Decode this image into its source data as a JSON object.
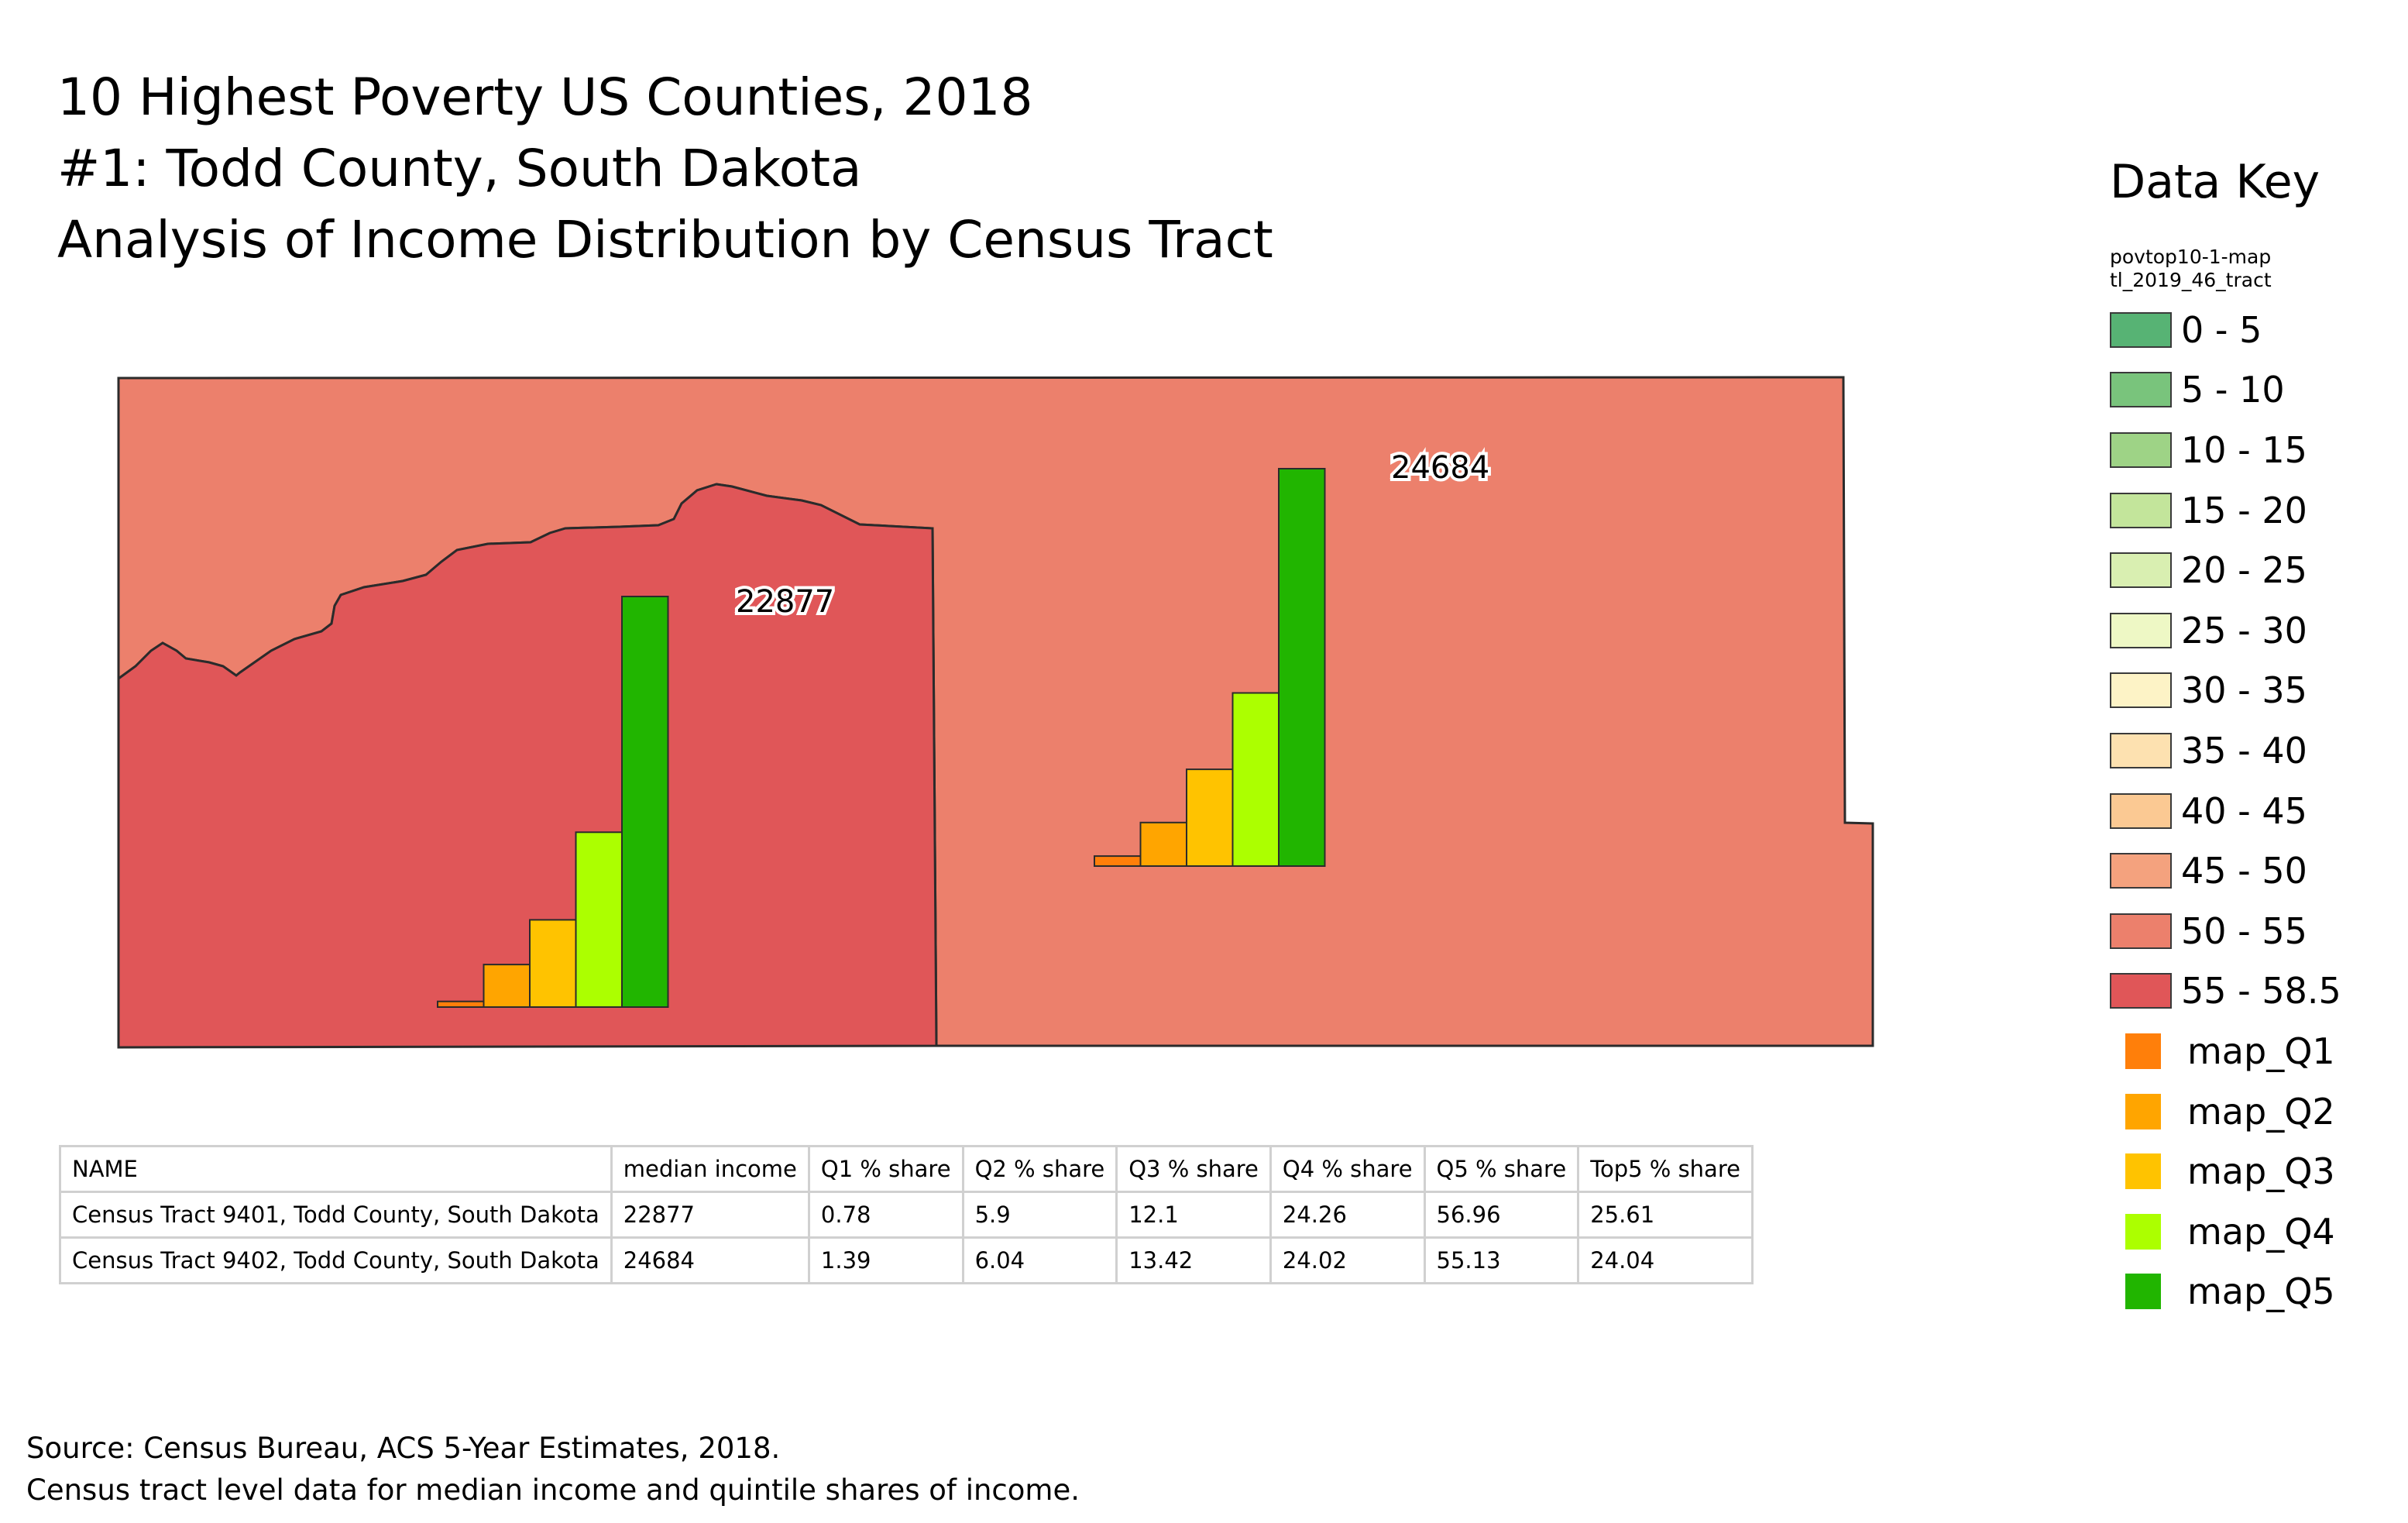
{
  "title": {
    "line1": "10 Highest Poverty US Counties, 2018",
    "line2": "#1: Todd County, South Dakota",
    "line3": "Analysis of Income Distribution by Census Tract"
  },
  "map": {
    "tracts": [
      {
        "label": "22877",
        "fill": "#e05658",
        "quintile_shares": [
          0.78,
          5.9,
          12.1,
          24.26,
          56.96
        ]
      },
      {
        "label": "24684",
        "fill": "#ec806c",
        "quintile_shares": [
          1.39,
          6.04,
          13.42,
          24.02,
          55.13
        ]
      }
    ],
    "bar_colors": [
      "#ff7f0a",
      "#ffa500",
      "#ffc300",
      "#acff00",
      "#21b500"
    ]
  },
  "legend": {
    "title": "Data Key",
    "layer_line1": "povtop10-1-map",
    "layer_line2": "tl_2019_46_tract",
    "classes": [
      {
        "label": "0 - 5",
        "color": "#57b374"
      },
      {
        "label": "5 - 10",
        "color": "#79c47c"
      },
      {
        "label": "10 - 15",
        "color": "#9ed386"
      },
      {
        "label": "15 - 20",
        "color": "#c3e59b"
      },
      {
        "label": "20 - 25",
        "color": "#d9efb1"
      },
      {
        "label": "25 - 30",
        "color": "#eef8c5"
      },
      {
        "label": "30 - 35",
        "color": "#fdf3c6"
      },
      {
        "label": "35 - 40",
        "color": "#fde1b0"
      },
      {
        "label": "40 - 45",
        "color": "#fbc993"
      },
      {
        "label": "45 - 50",
        "color": "#f4a27e"
      },
      {
        "label": "50 - 55",
        "color": "#ec806c"
      },
      {
        "label": "55 - 58.5",
        "color": "#e05658"
      }
    ],
    "charts": [
      {
        "label": "map_Q1",
        "color": "#ff7f0a"
      },
      {
        "label": "map_Q2",
        "color": "#ffa500"
      },
      {
        "label": "map_Q3",
        "color": "#ffc300"
      },
      {
        "label": "map_Q4",
        "color": "#acff00"
      },
      {
        "label": "map_Q5",
        "color": "#21b500"
      }
    ]
  },
  "table": {
    "headers": [
      "NAME",
      "median income",
      "Q1 % share",
      "Q2 % share",
      "Q3  % share",
      "Q4  % share",
      "Q5  % share",
      "Top5  % share"
    ],
    "rows": [
      [
        "Census Tract 9401, Todd County, South Dakota",
        "22877",
        "0.78",
        "5.9",
        "12.1",
        "24.26",
        "56.96",
        "25.61"
      ],
      [
        "Census Tract 9402, Todd County, South Dakota",
        "24684",
        "1.39",
        "6.04",
        "13.42",
        "24.02",
        "55.13",
        "24.04"
      ]
    ]
  },
  "source": {
    "line1": "Source: Census Bureau, ACS 5-Year Estimates, 2018.",
    "line2": "Census tract level data for median income and quintile shares of income."
  }
}
